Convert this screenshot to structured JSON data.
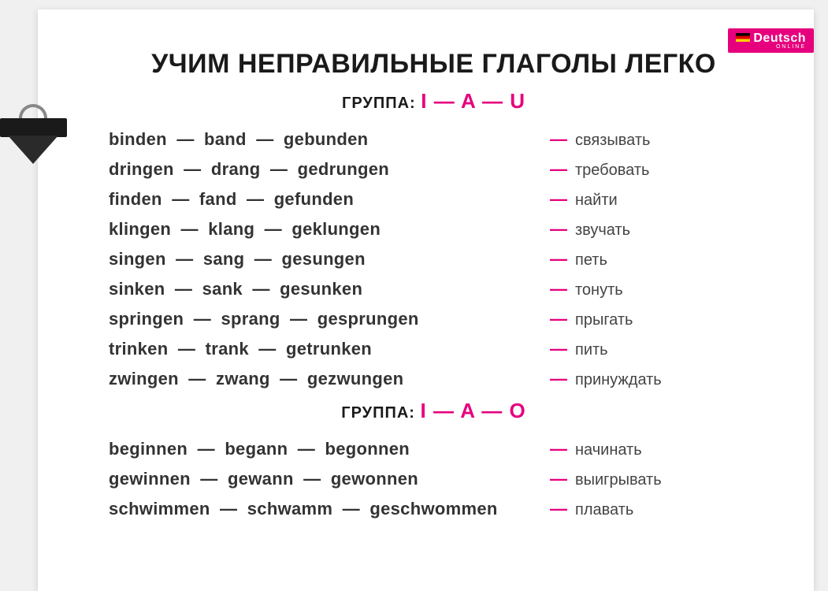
{
  "logo": {
    "brand": "Deutsch",
    "sub": "ONLINE"
  },
  "title": "УЧИМ НЕПРАВИЛЬНЫЕ ГЛАГОЛЫ ЛЕГКО",
  "group_label": "ГРУППА",
  "colors": {
    "accent": "#e6007e",
    "text": "#1a1a1a",
    "bg": "#ffffff"
  },
  "groups": [
    {
      "pattern": [
        "I",
        "A",
        "U"
      ],
      "rows": [
        {
          "forms": [
            "binden",
            "band",
            "gebunden"
          ],
          "translation": "связывать"
        },
        {
          "forms": [
            "dringen",
            "drang",
            "gedrungen"
          ],
          "translation": "требовать"
        },
        {
          "forms": [
            "finden",
            "fand",
            "gefunden"
          ],
          "translation": "найти"
        },
        {
          "forms": [
            "klingen",
            "klang",
            "geklungen"
          ],
          "translation": "звучать"
        },
        {
          "forms": [
            "singen",
            "sang",
            "gesungen"
          ],
          "translation": "петь"
        },
        {
          "forms": [
            "sinken",
            "sank",
            "gesunken"
          ],
          "translation": "тонуть"
        },
        {
          "forms": [
            "springen",
            "sprang",
            "gesprungen"
          ],
          "translation": "прыгать"
        },
        {
          "forms": [
            "trinken",
            "trank",
            "getrunken"
          ],
          "translation": "пить"
        },
        {
          "forms": [
            "zwingen",
            "zwang",
            "gezwungen"
          ],
          "translation": "принуждать"
        }
      ]
    },
    {
      "pattern": [
        "I",
        "A",
        "O"
      ],
      "rows": [
        {
          "forms": [
            "beginnen",
            "begann",
            "begonnen"
          ],
          "translation": "начинать"
        },
        {
          "forms": [
            "gewinnen",
            "gewann",
            "gewonnen"
          ],
          "translation": "выигрывать"
        },
        {
          "forms": [
            "schwimmen",
            "schwamm",
            "geschwommen"
          ],
          "translation": "плавать"
        }
      ]
    }
  ]
}
